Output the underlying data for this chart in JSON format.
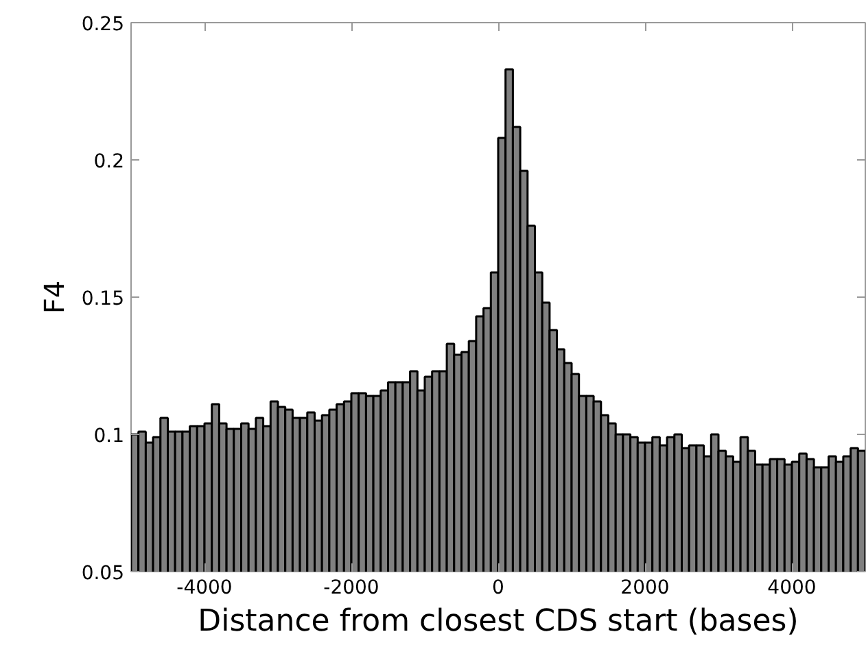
{
  "chart_data": {
    "type": "histogram",
    "xlabel": "Distance from closest CDS start (bases)",
    "ylabel": "F4",
    "bins": [
      -5000,
      -4900,
      -4800,
      -4700,
      -4600,
      -4500,
      -4400,
      -4300,
      -4200,
      -4100,
      -4000,
      -3900,
      -3800,
      -3700,
      -3600,
      -3500,
      -3400,
      -3300,
      -3200,
      -3100,
      -3000,
      -2900,
      -2800,
      -2700,
      -2600,
      -2500,
      -2400,
      -2300,
      -2200,
      -2100,
      -2000,
      -1900,
      -1800,
      -1700,
      -1600,
      -1500,
      -1400,
      -1300,
      -1200,
      -1100,
      -1000,
      -900,
      -800,
      -700,
      -600,
      -500,
      -400,
      -300,
      -200,
      -100,
      0,
      100,
      200,
      300,
      400,
      500,
      600,
      700,
      800,
      900,
      1000,
      1100,
      1200,
      1300,
      1400,
      1500,
      1600,
      1700,
      1800,
      1900,
      2000,
      2100,
      2200,
      2300,
      2400,
      2500,
      2600,
      2700,
      2800,
      2900,
      3000,
      3100,
      3200,
      3300,
      3400,
      3500,
      3600,
      3700,
      3800,
      3900,
      4000,
      4100,
      4200,
      4300,
      4400,
      4500,
      4600,
      4700,
      4800,
      4900,
      5000
    ],
    "values": [
      0.1,
      0.101,
      0.097,
      0.099,
      0.106,
      0.101,
      0.101,
      0.101,
      0.103,
      0.103,
      0.104,
      0.111,
      0.104,
      0.102,
      0.102,
      0.104,
      0.102,
      0.106,
      0.103,
      0.112,
      0.11,
      0.109,
      0.106,
      0.106,
      0.108,
      0.105,
      0.107,
      0.109,
      0.111,
      0.112,
      0.115,
      0.115,
      0.114,
      0.114,
      0.116,
      0.119,
      0.119,
      0.119,
      0.123,
      0.116,
      0.121,
      0.123,
      0.123,
      0.133,
      0.129,
      0.13,
      0.134,
      0.143,
      0.146,
      0.159,
      0.208,
      0.233,
      0.212,
      0.196,
      0.176,
      0.159,
      0.148,
      0.138,
      0.131,
      0.126,
      0.122,
      0.114,
      0.114,
      0.112,
      0.107,
      0.104,
      0.1,
      0.1,
      0.099,
      0.097,
      0.097,
      0.099,
      0.096,
      0.099,
      0.1,
      0.095,
      0.096,
      0.096,
      0.092,
      0.1,
      0.094,
      0.092,
      0.09,
      0.099,
      0.094,
      0.089,
      0.089,
      0.091,
      0.091,
      0.089,
      0.09,
      0.093,
      0.091,
      0.088,
      0.088,
      0.092,
      0.09,
      0.092,
      0.095,
      0.094
    ],
    "color": "#808080",
    "xlim": [
      -5000,
      5000
    ],
    "xticks": [
      -4000,
      -2000,
      0,
      2000,
      4000
    ],
    "ylim": [
      0.05,
      0.25
    ],
    "yticks": [
      0.05,
      0.1,
      0.15,
      0.2,
      0.25
    ],
    "grid": false
  }
}
